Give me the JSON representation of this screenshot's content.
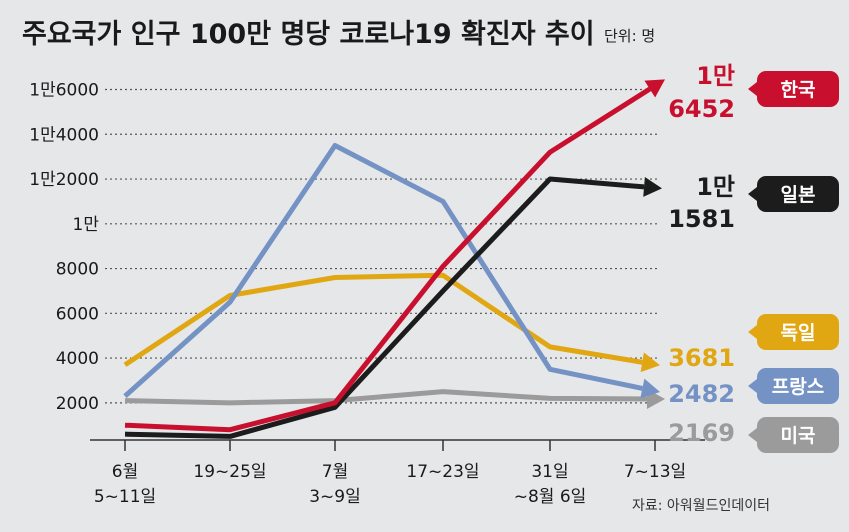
{
  "header": {
    "title": "주요국가 인구 100만 명당 코로나19 확진자 추이",
    "unit": "단위: 명"
  },
  "source": "자료: 아워월드인데이터",
  "chart_data": {
    "type": "line",
    "title": "주요국가 인구 100만 명당 코로나19 확진자 추이",
    "unit_label": "단위: 명",
    "categories": [
      "6월 5~11일",
      "19~25일",
      "7월 3~9일",
      "17~23일",
      "31일 ~8월 6일",
      "7~13일"
    ],
    "x_tick_labels": [
      [
        "6월",
        "5~11일"
      ],
      [
        "19~25일"
      ],
      [
        "7월",
        "3~9일"
      ],
      [
        "17~23일"
      ],
      [
        "31일",
        "~8월 6일"
      ],
      [
        "7~13일"
      ]
    ],
    "ylim": [
      0,
      17000
    ],
    "y_ticks": [
      2000,
      4000,
      6000,
      8000,
      10000,
      12000,
      14000,
      16000
    ],
    "y_tick_labels": [
      "2000",
      "4000",
      "6000",
      "8000",
      "1만",
      "1만2000",
      "1만4000",
      "1만6000"
    ],
    "grid": true,
    "series": [
      {
        "name": "한국",
        "color": "#c8102e",
        "values": [
          1000,
          800,
          2000,
          8100,
          13200,
          16452
        ],
        "end_label": [
          "1만",
          "6452"
        ]
      },
      {
        "name": "일본",
        "color": "#1c1c1c",
        "values": [
          600,
          500,
          1800,
          7000,
          12000,
          11581
        ],
        "end_label": [
          "1만",
          "1581"
        ]
      },
      {
        "name": "독일",
        "color": "#e1a712",
        "values": [
          3700,
          6800,
          7600,
          7700,
          4500,
          3681
        ],
        "end_label": [
          "3681"
        ]
      },
      {
        "name": "프랑스",
        "color": "#7592c5",
        "values": [
          2300,
          6500,
          13500,
          11000,
          3500,
          2482
        ],
        "end_label": [
          "2482"
        ]
      },
      {
        "name": "미국",
        "color": "#9b9b9b",
        "values": [
          2100,
          2000,
          2100,
          2500,
          2200,
          2169
        ],
        "end_label": [
          "2169"
        ]
      }
    ]
  }
}
